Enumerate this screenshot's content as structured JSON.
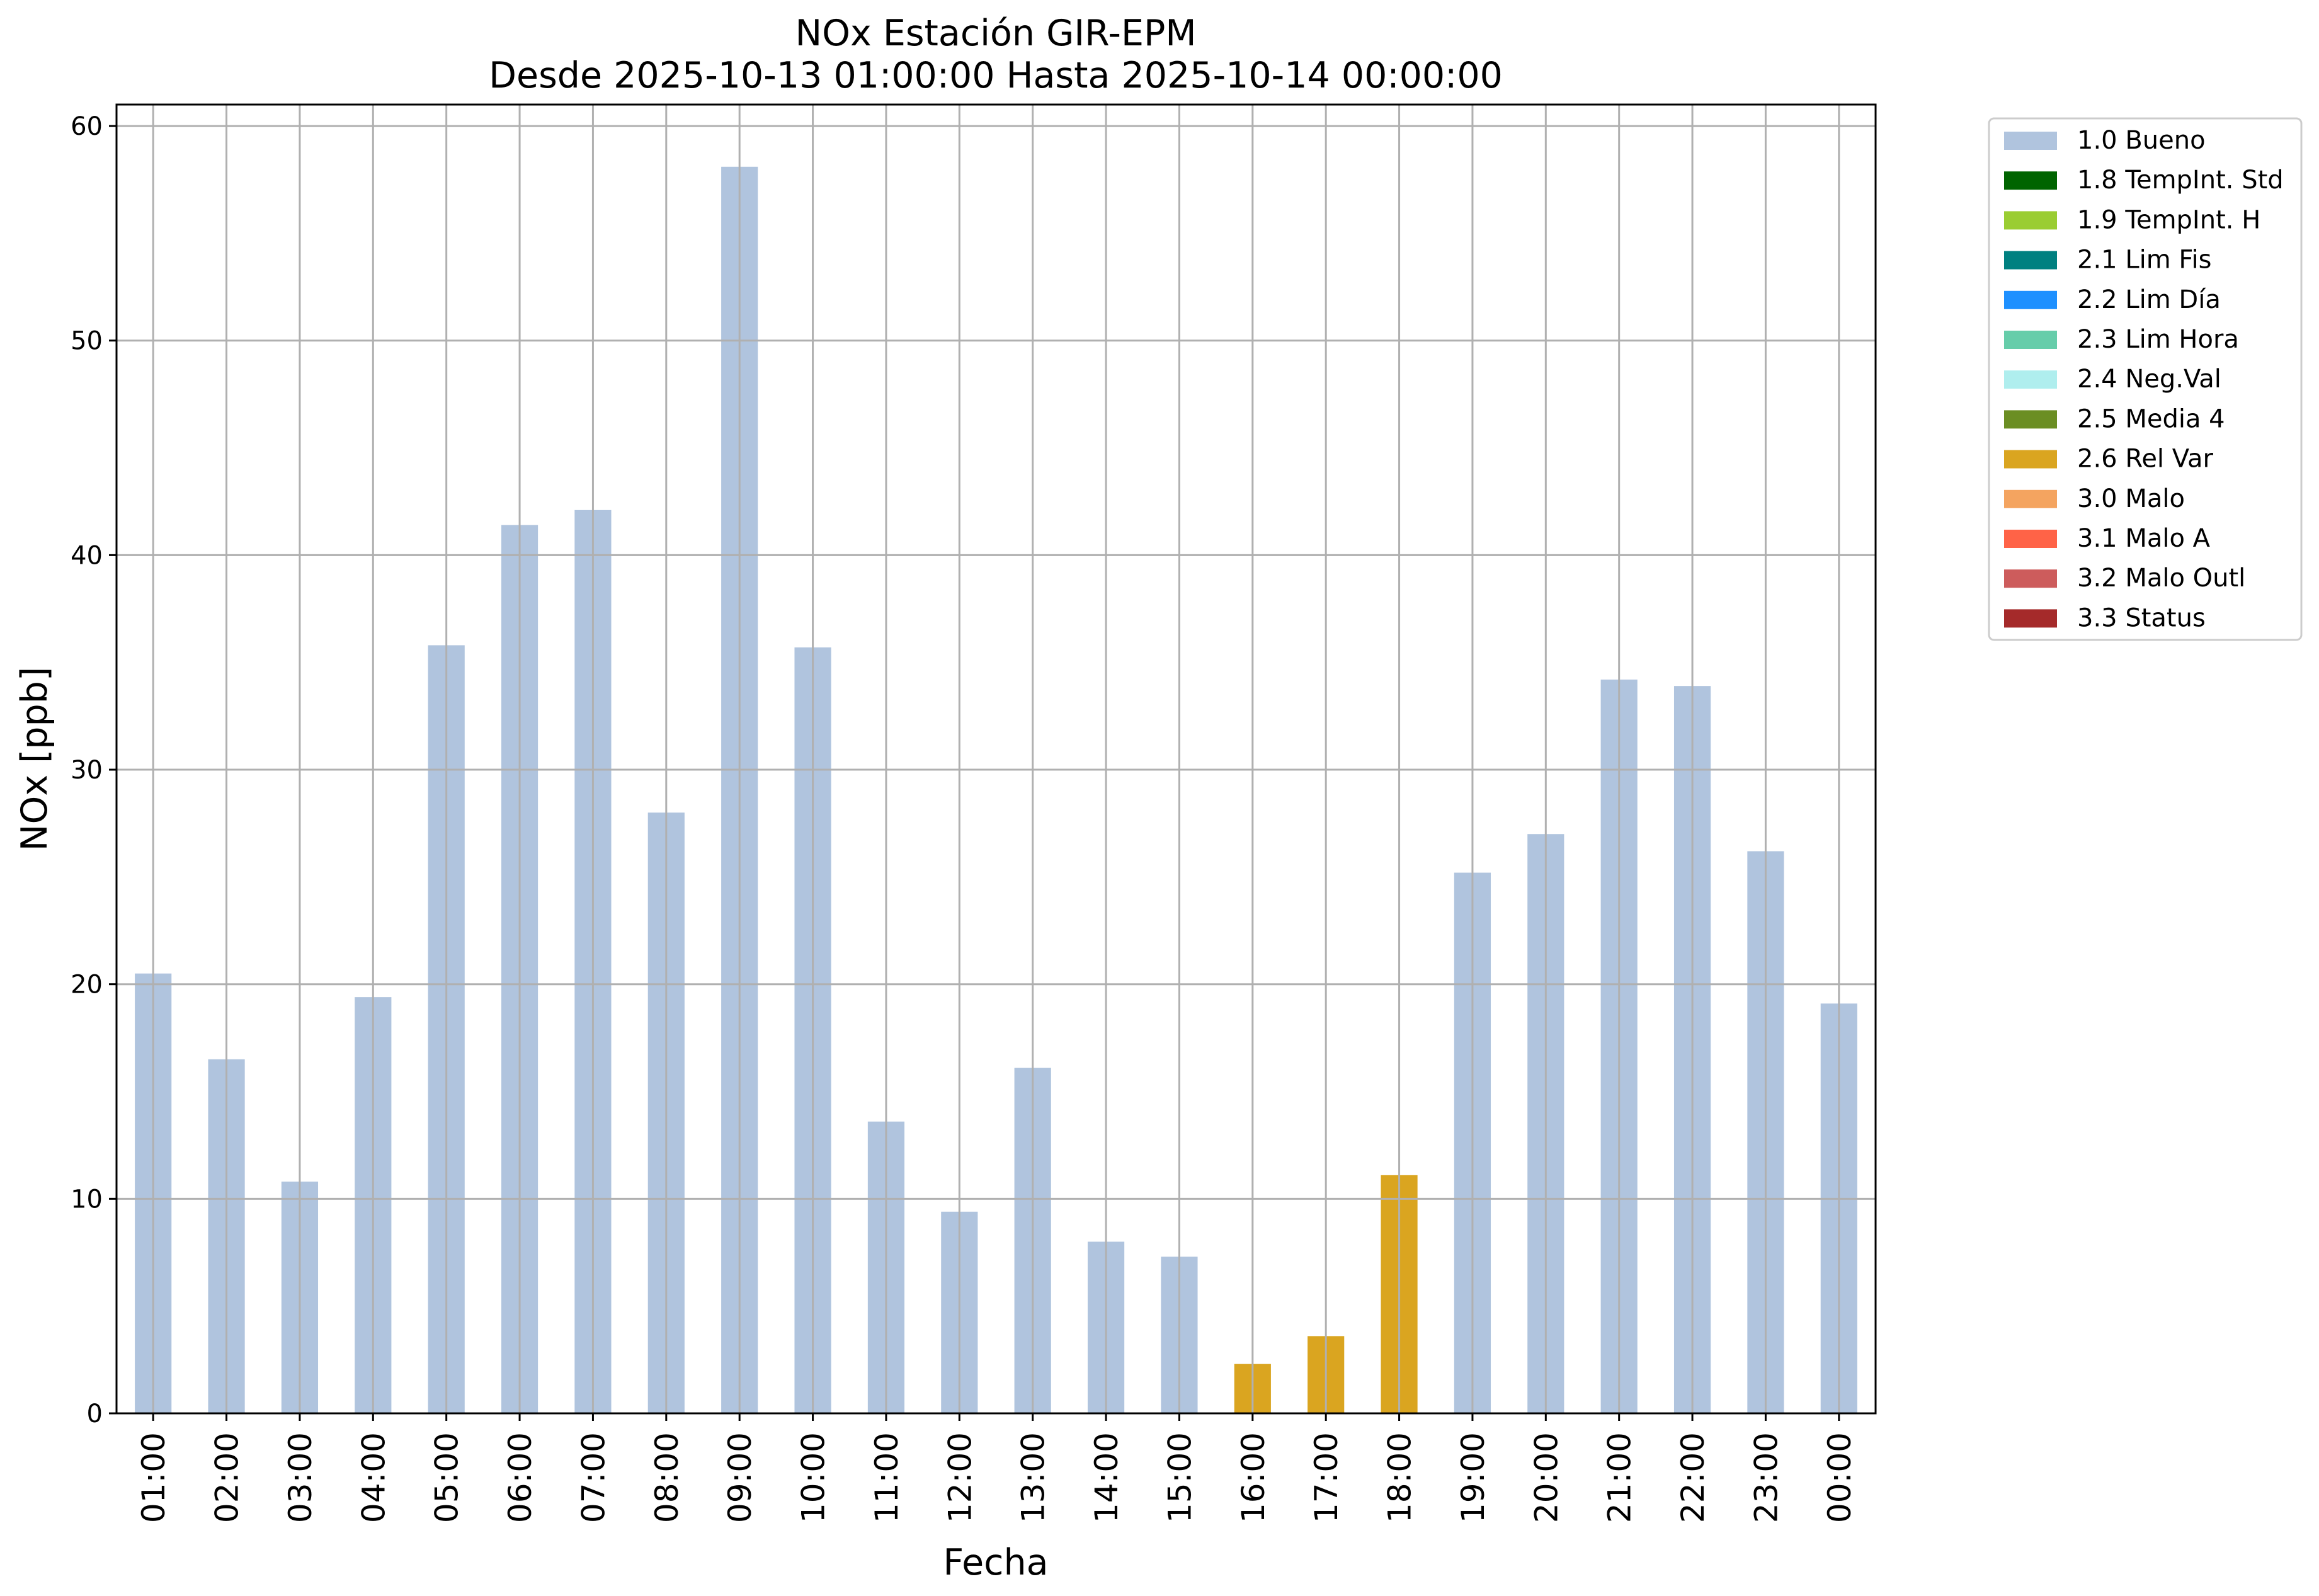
{
  "chart_data": {
    "type": "bar",
    "title_line1": "NOx Estación GIR-EPM",
    "title_line2": "Desde 2025-10-13 01:00:00 Hasta 2025-10-14 00:00:00",
    "xlabel": "Fecha",
    "ylabel": "NOx [ppb]",
    "ylim": [
      0,
      61
    ],
    "yticks": [
      0,
      10,
      20,
      30,
      40,
      50,
      60
    ],
    "grid": true,
    "legend_position": "outside-top-right",
    "categories": [
      "01:00",
      "02:00",
      "03:00",
      "04:00",
      "05:00",
      "06:00",
      "07:00",
      "08:00",
      "09:00",
      "10:00",
      "11:00",
      "12:00",
      "13:00",
      "14:00",
      "15:00",
      "16:00",
      "17:00",
      "18:00",
      "19:00",
      "20:00",
      "21:00",
      "22:00",
      "23:00",
      "00:00"
    ],
    "values": [
      20.5,
      16.5,
      10.8,
      19.4,
      35.8,
      41.4,
      42.1,
      28.0,
      58.1,
      35.7,
      13.6,
      9.4,
      16.1,
      8.0,
      7.3,
      2.3,
      3.6,
      11.1,
      25.2,
      27.0,
      34.2,
      33.9,
      26.2,
      19.1
    ],
    "flags": [
      "1.0 Bueno",
      "1.0 Bueno",
      "1.0 Bueno",
      "1.0 Bueno",
      "1.0 Bueno",
      "1.0 Bueno",
      "1.0 Bueno",
      "1.0 Bueno",
      "1.0 Bueno",
      "1.0 Bueno",
      "1.0 Bueno",
      "1.0 Bueno",
      "1.0 Bueno",
      "1.0 Bueno",
      "1.0 Bueno",
      "2.6 Rel Var",
      "2.6 Rel Var",
      "2.6 Rel Var",
      "1.0 Bueno",
      "1.0 Bueno",
      "1.0 Bueno",
      "1.0 Bueno",
      "1.0 Bueno",
      "1.0 Bueno"
    ],
    "legend": [
      {
        "label": "1.0 Bueno",
        "color": "#b0c4de"
      },
      {
        "label": "1.8 TempInt. Std",
        "color": "#006400"
      },
      {
        "label": "1.9 TempInt. H",
        "color": "#9acd32"
      },
      {
        "label": "2.1 Lim Fis",
        "color": "#008080"
      },
      {
        "label": "2.2 Lim Día",
        "color": "#1e90ff"
      },
      {
        "label": "2.3 Lim Hora",
        "color": "#66cdaa"
      },
      {
        "label": "2.4 Neg.Val",
        "color": "#afeeee"
      },
      {
        "label": "2.5 Media 4",
        "color": "#6b8e23"
      },
      {
        "label": "2.6 Rel Var",
        "color": "#daa520"
      },
      {
        "label": "3.0 Malo",
        "color": "#f4a460"
      },
      {
        "label": "3.1 Malo A",
        "color": "#ff6347"
      },
      {
        "label": "3.2 Malo Outl",
        "color": "#cd5c5c"
      },
      {
        "label": "3.3 Status",
        "color": "#a52a2a"
      }
    ]
  }
}
